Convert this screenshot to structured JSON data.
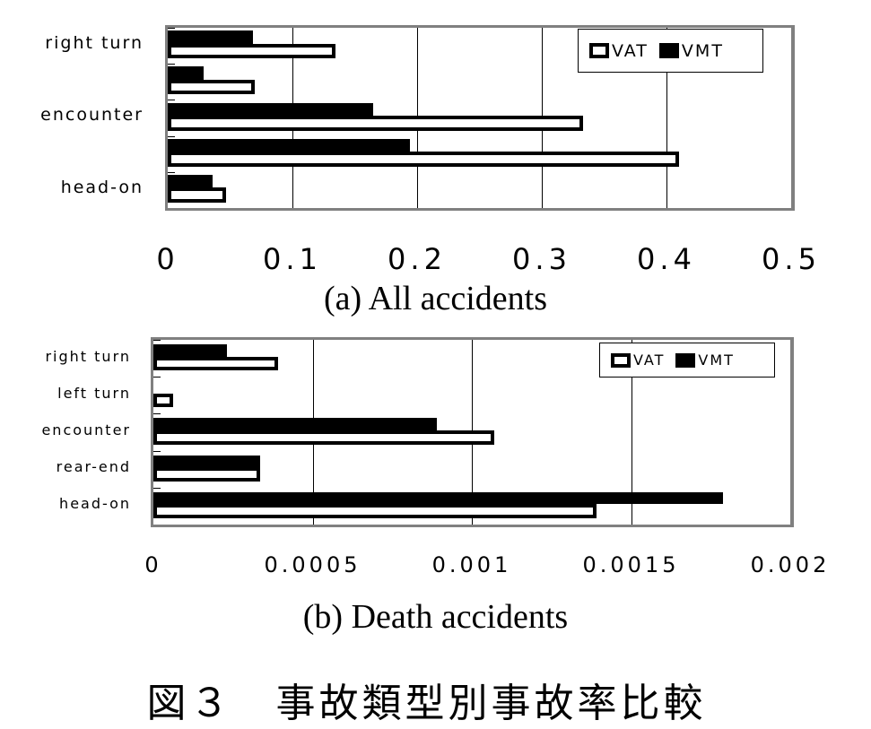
{
  "chart_data": [
    {
      "type": "bar",
      "orientation": "horizontal",
      "title": "(a) All accidents",
      "xlabel": "",
      "ylabel": "",
      "xlim": [
        0,
        0.5
      ],
      "xticks": [
        "0",
        "0.1",
        "0.2",
        "0.3",
        "0.4",
        "0.5"
      ],
      "grid": true,
      "legend_position": "top-right",
      "categories_top_to_bottom": [
        "right turn",
        "left turn",
        "encounter",
        "rear-end",
        "head-on"
      ],
      "visible_category_labels": [
        "right turn",
        "",
        "encounter",
        "",
        "head-on"
      ],
      "series": [
        {
          "name": "VAT",
          "style": "hollow",
          "values": [
            0.132,
            0.067,
            0.33,
            0.407,
            0.044
          ]
        },
        {
          "name": "VMT",
          "style": "solid",
          "values": [
            0.068,
            0.029,
            0.165,
            0.194,
            0.036
          ]
        }
      ]
    },
    {
      "type": "bar",
      "orientation": "horizontal",
      "title": "(b) Death accidents",
      "xlabel": "",
      "ylabel": "",
      "xlim": [
        0,
        0.002
      ],
      "xticks": [
        "0",
        "0.0005",
        "0.001",
        "0.0015",
        "0.002"
      ],
      "grid": true,
      "legend_position": "top-right",
      "categories_top_to_bottom": [
        "right turn",
        "left turn",
        "encounter",
        "rear-end",
        "head-on"
      ],
      "visible_category_labels": [
        "right turn",
        "left turn",
        "encounter",
        "rear-end",
        "head-on"
      ],
      "series": [
        {
          "name": "VAT",
          "style": "hollow",
          "values": [
            0.00038,
            5e-05,
            0.00106,
            0.000325,
            0.00138
          ]
        },
        {
          "name": "VMT",
          "style": "solid",
          "values": [
            0.00023,
            0.0,
            0.00089,
            0.000335,
            0.00179
          ]
        }
      ]
    }
  ],
  "figure": {
    "caption": "図３　事故類型別事故率比較",
    "chart_a": {
      "subcaption": "(a) All accidents",
      "category_labels": [
        "right turn",
        "",
        "encounter",
        "",
        "head-on"
      ],
      "xticks": [
        "0",
        "0.1",
        "0.2",
        "0.3",
        "0.4",
        "0.5"
      ],
      "legend": {
        "vat": "VAT",
        "vmt": "VMT"
      }
    },
    "chart_b": {
      "subcaption": "(b) Death accidents",
      "category_labels": [
        "right turn",
        "left turn",
        "encounter",
        "rear-end",
        "head-on"
      ],
      "xticks": [
        "0",
        "0.0005",
        "0.001",
        "0.0015",
        "0.002"
      ],
      "legend": {
        "vat": "VAT",
        "vmt": "VMT"
      }
    }
  },
  "colors": {
    "bar_solid": "#000000",
    "bar_hollow_fill": "#ffffff",
    "plot_border": "#808080",
    "gridline": "#000000"
  }
}
